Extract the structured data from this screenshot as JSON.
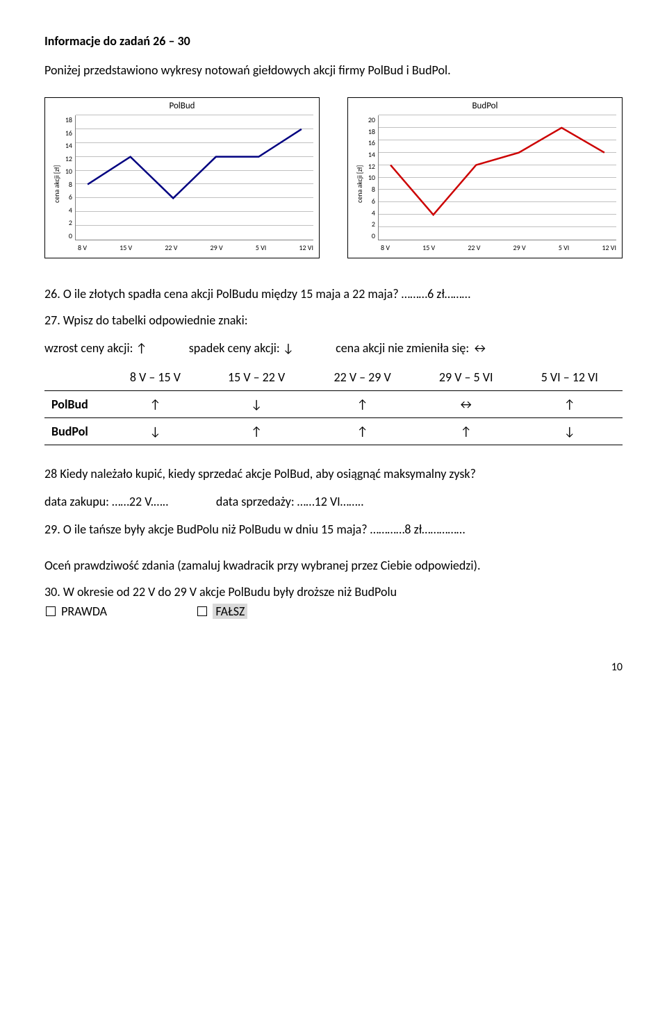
{
  "title": "Informacje do zadań 26 – 30",
  "intro": "Poniżej przedstawiono wykresy notowań giełdowych akcji firmy PolBud i BudPol.",
  "chart_polbud": {
    "type": "line",
    "title": "PolBud",
    "ylabel": "cena akcji [zł]",
    "ylim": [
      0,
      18
    ],
    "ytick_step": 2,
    "yticks": [
      "18",
      "16",
      "14",
      "12",
      "10",
      "8",
      "6",
      "4",
      "2",
      "0"
    ],
    "xlabels": [
      "8 V",
      "15 V",
      "22 V",
      "29 V",
      "5 VI",
      "12 VI"
    ],
    "values": [
      8,
      12,
      6,
      12,
      12,
      16
    ],
    "line_color": "#000080",
    "line_width": 2.5,
    "grid_color": "#c0c0c0",
    "border_color": "#808080",
    "background": "#ffffff"
  },
  "chart_budpol": {
    "type": "line",
    "title": "BudPol",
    "ylabel": "cena akcji [zł]",
    "ylim": [
      0,
      20
    ],
    "ytick_step": 2,
    "yticks": [
      "20",
      "18",
      "16",
      "14",
      "12",
      "10",
      "8",
      "6",
      "4",
      "2",
      "0"
    ],
    "xlabels": [
      "8 V",
      "15 V",
      "22 V",
      "29 V",
      "5 VI",
      "12 VI"
    ],
    "values": [
      12,
      4,
      12,
      14,
      18,
      14
    ],
    "line_color": "#cc0000",
    "line_width": 2.5,
    "grid_color": "#c0c0c0",
    "border_color": "#808080",
    "background": "#ffffff"
  },
  "q26": {
    "text": "26. O ile złotych spadła cena akcji PolBudu między 15 maja a 22 maja?",
    "answer": "………6 zł………"
  },
  "q27": {
    "text": "27. Wpisz do tabelki odpowiednie znaki:",
    "legend_up": "wzrost ceny akcji: ↑",
    "legend_down": "spadek ceny akcji: ↓",
    "legend_same": "cena akcji nie zmieniła się: ↔",
    "table": {
      "columns": [
        "",
        "8 V – 15 V",
        "15 V – 22 V",
        "22 V – 29 V",
        "29 V – 5 VI",
        "5 VI – 12 VI"
      ],
      "rows": [
        [
          "PolBud",
          "↑",
          "↓",
          "↑",
          "↔",
          "↑"
        ],
        [
          "BudPol",
          "↓",
          "↑",
          "↑",
          "↑",
          "↓"
        ]
      ]
    }
  },
  "q28": {
    "text": "28 Kiedy należało kupić, kiedy sprzedać akcje PolBud, aby osiągnąć maksymalny zysk?",
    "buy_label": "data zakupu: ",
    "buy_answer": "……22 V.…..",
    "sell_label": "data sprzedaży: ",
    "sell_answer": "……12 VI…….."
  },
  "q29": {
    "text": "29. O ile tańsze były akcje BudPolu niż PolBudu w dniu 15 maja?",
    "answer": "…………8 zł……………"
  },
  "truth_instr": "Oceń prawdziwość zdania (zamaluj kwadracik przy wybranej przez Ciebie odpowiedzi).",
  "q30": {
    "text": "30. W okresie od 22 V do 29 V akcje PolBudu były droższe niż BudPolu",
    "true_label": "PRAWDA",
    "false_label": "FAŁSZ",
    "highlight_false": true
  },
  "page_number": "10"
}
